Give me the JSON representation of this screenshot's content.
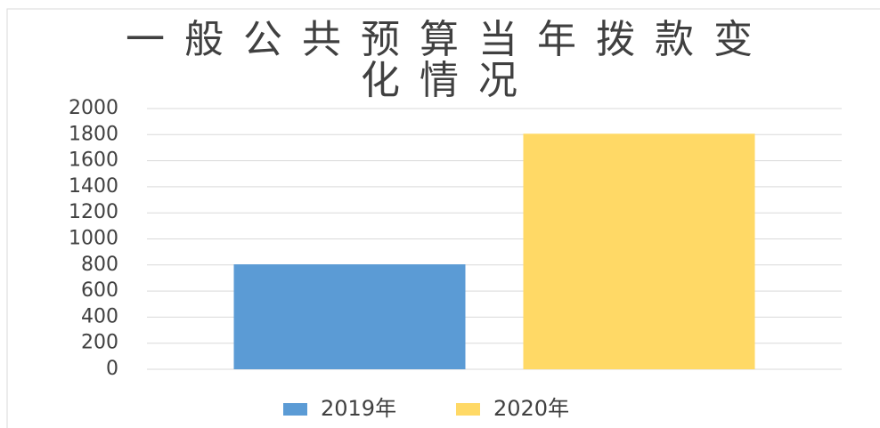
{
  "chart_data": {
    "type": "bar",
    "title": "一般公共预算当年拨款变化情况",
    "categories": [
      null
    ],
    "series": [
      {
        "name": "2019年",
        "color": "#5b9bd5",
        "values": [
          805
        ]
      },
      {
        "name": "2020年",
        "color": "#ffd966",
        "values": [
          1807
        ]
      }
    ],
    "ylim": [
      0,
      2000
    ],
    "yticks": [
      0,
      200,
      400,
      600,
      800,
      1000,
      1200,
      1400,
      1600,
      1800,
      2000
    ],
    "grid": true,
    "legend": "bottom"
  }
}
